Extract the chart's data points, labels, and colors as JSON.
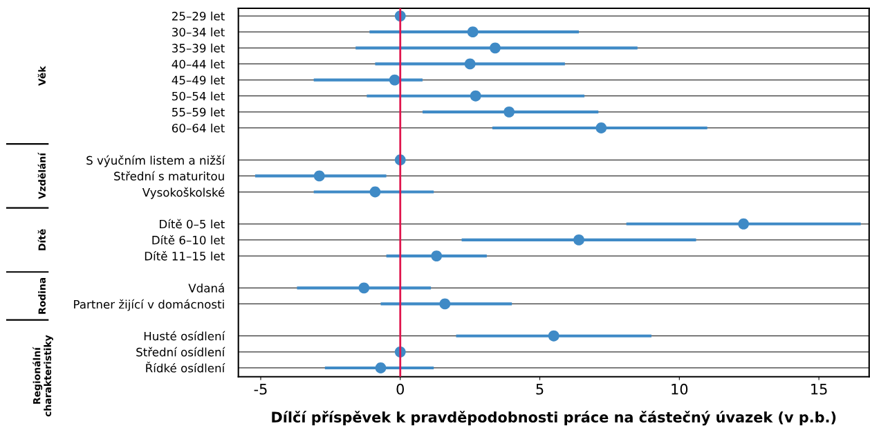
{
  "chart_data": {
    "type": "scatter",
    "orientation": "horizontal",
    "xlabel": "Dílčí příspěvek k pravděpodobnosti práce na částečný úvazek (v p.b.)",
    "categories": [
      "25–29 let",
      "30–34 let",
      "35–39 let",
      "40–44 let",
      "45–49 let",
      "50–54 let",
      "55–59 let",
      "60–64 let",
      null,
      "S výučním listem a nižší",
      "Střední s maturitou",
      "Vysokoškolské",
      null,
      "Dítě 0–5 let",
      "Dítě 6–10 let",
      "Dítě 11–15 let",
      null,
      "Vdaná",
      "Partner žijící v domácnosti",
      null,
      "Husté osídlení",
      "Střední osídlení",
      "Řídké osídlení"
    ],
    "series": [
      {
        "color": "#3f8ac6",
        "values": [
          0,
          2.6,
          3.4,
          2.5,
          -0.2,
          2.7,
          3.9,
          7.2,
          null,
          0,
          -2.9,
          -0.9,
          null,
          12.3,
          6.4,
          1.3,
          null,
          -1.3,
          1.6,
          null,
          5.5,
          0,
          -0.7
        ],
        "errors": [
          null,
          [
            -1.1,
            6.4
          ],
          [
            -1.6,
            8.5
          ],
          [
            -0.9,
            5.9
          ],
          [
            -3.1,
            0.8
          ],
          [
            -1.2,
            6.6
          ],
          [
            0.8,
            7.1
          ],
          [
            3.3,
            11.0
          ],
          null,
          null,
          [
            -5.2,
            -0.5
          ],
          [
            -3.1,
            1.2
          ],
          null,
          [
            8.1,
            16.5
          ],
          [
            2.2,
            10.6
          ],
          [
            -0.5,
            3.1
          ],
          null,
          [
            -3.7,
            1.1
          ],
          [
            -0.7,
            4.0
          ],
          null,
          [
            2.0,
            9.0
          ],
          null,
          [
            -2.7,
            1.2
          ]
        ]
      }
    ],
    "annotations": [
      "Věk",
      "Vzdělání",
      "Dítě",
      "Rodina",
      "Regionální charakteristiky"
    ],
    "xlim": [
      -5.8,
      16.8
    ],
    "xticks": [
      -5,
      0,
      5,
      10,
      15
    ],
    "ref_lines": [
      {
        "axis": "x",
        "value": 0,
        "color": "#e0144c"
      }
    ],
    "grid": "y",
    "marker": "circle"
  }
}
